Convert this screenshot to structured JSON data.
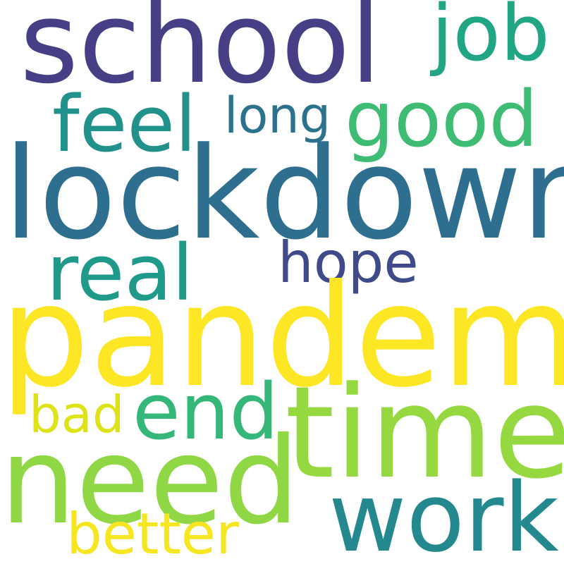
{
  "word_cloud": {
    "background": "#ffffff",
    "words": [
      {
        "id": "school",
        "text": "school",
        "color": "#463f85"
      },
      {
        "id": "job",
        "text": "job",
        "color": "#21a684"
      },
      {
        "id": "feel",
        "text": "feel",
        "color": "#21918c"
      },
      {
        "id": "long",
        "text": "long",
        "color": "#2c728e"
      },
      {
        "id": "good",
        "text": "good",
        "color": "#3ebc74"
      },
      {
        "id": "lockdown",
        "text": "lockdown",
        "color": "#2e6e8e"
      },
      {
        "id": "real",
        "text": "real",
        "color": "#1f9a8a"
      },
      {
        "id": "hope",
        "text": "hope",
        "color": "#3e4a89"
      },
      {
        "id": "pandemic",
        "text": "pandemic",
        "color": "#fde725"
      },
      {
        "id": "bad",
        "text": "bad",
        "color": "#dde318"
      },
      {
        "id": "end",
        "text": "end",
        "color": "#35b779"
      },
      {
        "id": "time",
        "text": "time",
        "color": "#95d840"
      },
      {
        "id": "need",
        "text": "need",
        "color": "#8fd744"
      },
      {
        "id": "work",
        "text": "work",
        "color": "#23898e"
      },
      {
        "id": "better",
        "text": "better",
        "color": "#f6e620"
      }
    ]
  }
}
